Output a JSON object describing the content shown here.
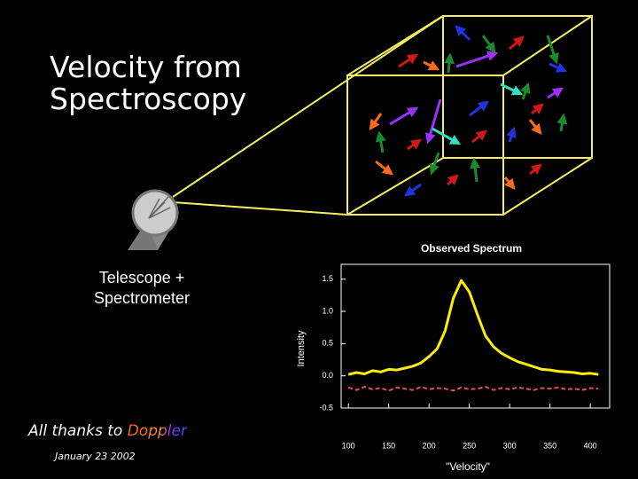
{
  "slide": {
    "title": "Velocity from Spectroscopy",
    "telescope_label": "Telescope + Spectrometer",
    "thanks_prefix": "All thanks to",
    "thanks_name": "Doppler",
    "date": "January 23 2002"
  },
  "chart_data": {
    "type": "line",
    "title": "Observed Spectrum",
    "ylabel": "Intensity",
    "xlabel": "\"Velocity\"",
    "x": [
      100,
      110,
      120,
      130,
      140,
      150,
      160,
      170,
      180,
      190,
      200,
      210,
      220,
      230,
      240,
      250,
      260,
      270,
      280,
      290,
      300,
      310,
      320,
      330,
      340,
      350,
      360,
      370,
      380,
      390,
      400,
      410
    ],
    "series": [
      {
        "color": "#ffee00",
        "values": [
          0.02,
          0.05,
          0.03,
          0.08,
          0.06,
          0.1,
          0.09,
          0.12,
          0.15,
          0.2,
          0.3,
          0.42,
          0.7,
          1.2,
          1.48,
          1.3,
          0.95,
          0.62,
          0.45,
          0.35,
          0.28,
          0.22,
          0.18,
          0.14,
          0.1,
          0.09,
          0.07,
          0.06,
          0.05,
          0.03,
          0.04,
          0.02
        ]
      },
      {
        "color": "#e05050",
        "values": [
          -0.18,
          -0.22,
          -0.17,
          -0.21,
          -0.19,
          -0.23,
          -0.18,
          -0.2,
          -0.22,
          -0.17,
          -0.21,
          -0.19,
          -0.2,
          -0.23,
          -0.18,
          -0.21,
          -0.2,
          -0.17,
          -0.22,
          -0.19,
          -0.21,
          -0.18,
          -0.2,
          -0.22,
          -0.19,
          -0.2,
          -0.18,
          -0.21,
          -0.2,
          -0.22,
          -0.19,
          -0.2
        ]
      }
    ],
    "xlim": [
      91,
      424
    ],
    "xticks": [
      100,
      150,
      200,
      250,
      300,
      350,
      400
    ],
    "ylim": [
      -0.5,
      1.73
    ],
    "yticks": [
      {
        "value": 0,
        "label": "0.0"
      },
      0.5,
      {
        "value": 1,
        "label": "1.0"
      },
      1.5,
      -0.5
    ]
  }
}
